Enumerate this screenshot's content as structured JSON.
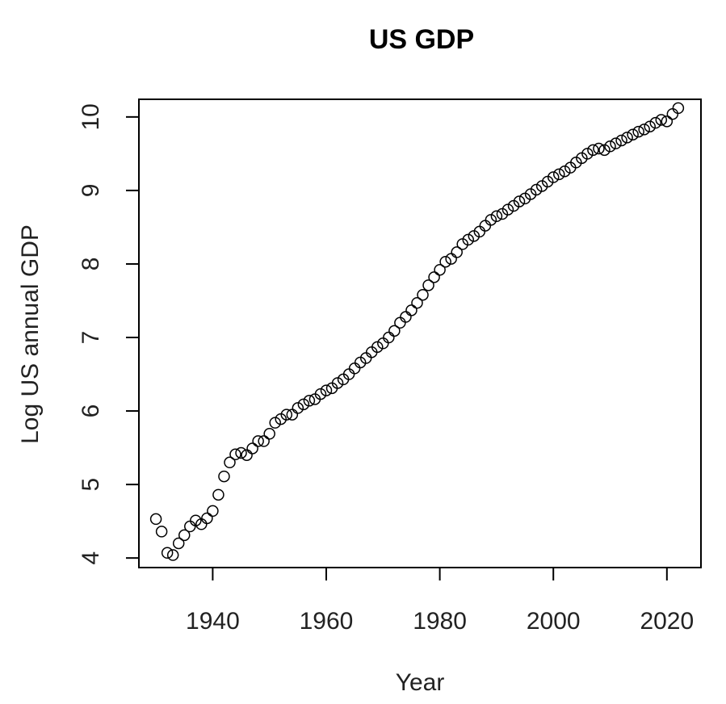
{
  "chart_data": {
    "type": "scatter",
    "title": "US GDP",
    "xlabel": "Year",
    "ylabel": "Log US annual GDP",
    "xlim": [
      1927,
      2026
    ],
    "ylim": [
      3.87,
      10.24
    ],
    "xticks": [
      1940,
      1960,
      1980,
      2000,
      2020
    ],
    "yticks": [
      4,
      5,
      6,
      7,
      8,
      9,
      10
    ],
    "x_tick_labels": [
      "1940",
      "1960",
      "1980",
      "2000",
      "2020"
    ],
    "y_tick_labels": [
      "4",
      "5",
      "6",
      "7",
      "8",
      "9",
      "10"
    ],
    "grid": false,
    "marker": "open-circle",
    "points": [
      [
        1930,
        4.53
      ],
      [
        1931,
        4.36
      ],
      [
        1932,
        4.07
      ],
      [
        1933,
        4.04
      ],
      [
        1934,
        4.2
      ],
      [
        1935,
        4.31
      ],
      [
        1936,
        4.43
      ],
      [
        1937,
        4.51
      ],
      [
        1938,
        4.46
      ],
      [
        1939,
        4.54
      ],
      [
        1940,
        4.64
      ],
      [
        1941,
        4.86
      ],
      [
        1942,
        5.11
      ],
      [
        1943,
        5.3
      ],
      [
        1944,
        5.41
      ],
      [
        1945,
        5.43
      ],
      [
        1946,
        5.4
      ],
      [
        1947,
        5.49
      ],
      [
        1948,
        5.59
      ],
      [
        1949,
        5.59
      ],
      [
        1950,
        5.69
      ],
      [
        1951,
        5.84
      ],
      [
        1952,
        5.89
      ],
      [
        1953,
        5.95
      ],
      [
        1954,
        5.95
      ],
      [
        1955,
        6.04
      ],
      [
        1956,
        6.09
      ],
      [
        1957,
        6.14
      ],
      [
        1958,
        6.16
      ],
      [
        1959,
        6.23
      ],
      [
        1960,
        6.28
      ],
      [
        1961,
        6.31
      ],
      [
        1962,
        6.38
      ],
      [
        1963,
        6.43
      ],
      [
        1964,
        6.5
      ],
      [
        1965,
        6.58
      ],
      [
        1966,
        6.66
      ],
      [
        1967,
        6.72
      ],
      [
        1968,
        6.8
      ],
      [
        1969,
        6.87
      ],
      [
        1970,
        6.92
      ],
      [
        1971,
        7.0
      ],
      [
        1972,
        7.09
      ],
      [
        1973,
        7.2
      ],
      [
        1974,
        7.28
      ],
      [
        1975,
        7.37
      ],
      [
        1976,
        7.47
      ],
      [
        1977,
        7.58
      ],
      [
        1978,
        7.71
      ],
      [
        1979,
        7.82
      ],
      [
        1980,
        7.92
      ],
      [
        1981,
        8.03
      ],
      [
        1982,
        8.07
      ],
      [
        1983,
        8.16
      ],
      [
        1984,
        8.27
      ],
      [
        1985,
        8.33
      ],
      [
        1986,
        8.38
      ],
      [
        1987,
        8.44
      ],
      [
        1988,
        8.52
      ],
      [
        1989,
        8.6
      ],
      [
        1990,
        8.65
      ],
      [
        1991,
        8.68
      ],
      [
        1992,
        8.74
      ],
      [
        1993,
        8.79
      ],
      [
        1994,
        8.85
      ],
      [
        1995,
        8.89
      ],
      [
        1996,
        8.95
      ],
      [
        1997,
        9.01
      ],
      [
        1998,
        9.06
      ],
      [
        1999,
        9.12
      ],
      [
        2000,
        9.18
      ],
      [
        2001,
        9.22
      ],
      [
        2002,
        9.26
      ],
      [
        2003,
        9.31
      ],
      [
        2004,
        9.38
      ],
      [
        2005,
        9.44
      ],
      [
        2006,
        9.5
      ],
      [
        2007,
        9.55
      ],
      [
        2008,
        9.57
      ],
      [
        2009,
        9.55
      ],
      [
        2010,
        9.6
      ],
      [
        2011,
        9.64
      ],
      [
        2012,
        9.68
      ],
      [
        2013,
        9.72
      ],
      [
        2014,
        9.76
      ],
      [
        2015,
        9.8
      ],
      [
        2016,
        9.83
      ],
      [
        2017,
        9.87
      ],
      [
        2018,
        9.92
      ],
      [
        2019,
        9.96
      ],
      [
        2020,
        9.94
      ],
      [
        2021,
        10.04
      ],
      [
        2022,
        10.12
      ]
    ]
  }
}
